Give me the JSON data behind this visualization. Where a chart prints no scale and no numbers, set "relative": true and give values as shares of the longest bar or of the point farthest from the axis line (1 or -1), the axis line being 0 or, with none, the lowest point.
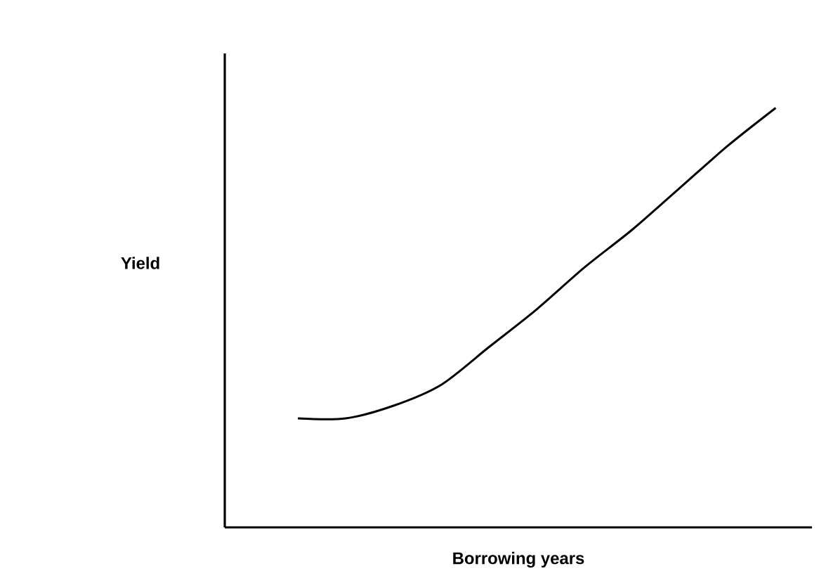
{
  "chart_data": {
    "type": "line",
    "xlabel": "Borrowing years",
    "ylabel": "Yield",
    "relative": true,
    "color": "#000000",
    "categories": [
      null,
      null,
      null,
      null,
      null,
      null,
      null,
      null,
      null,
      null,
      null
    ],
    "values": [
      0.26,
      0.26,
      0.29,
      0.34,
      0.43,
      0.52,
      0.62,
      0.71,
      0.81,
      0.91,
      1
    ]
  }
}
